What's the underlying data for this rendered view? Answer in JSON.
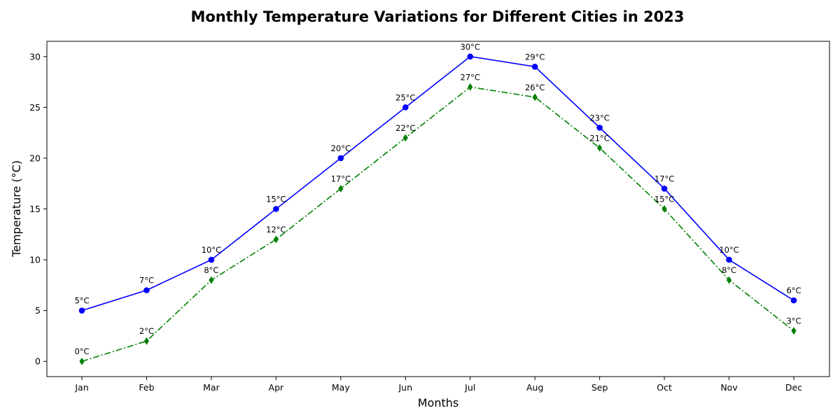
{
  "chart_data": {
    "type": "line",
    "title": "Monthly Temperature Variations for Different Cities in 2023",
    "xlabel": "Months",
    "ylabel": "Temperature (°C)",
    "categories": [
      "Jan",
      "Feb",
      "Mar",
      "Apr",
      "May",
      "Jun",
      "Jul",
      "Aug",
      "Sep",
      "Oct",
      "Nov",
      "Dec"
    ],
    "ylim": [
      -1.5,
      31.5
    ],
    "yticks": [
      0,
      5,
      10,
      15,
      20,
      25,
      30
    ],
    "grid": false,
    "label_suffix": "°C",
    "series": [
      {
        "values": [
          5,
          7,
          10,
          15,
          20,
          25,
          30,
          29,
          23,
          17,
          10,
          6
        ],
        "color": "#0000ff",
        "line_style": "solid",
        "marker": "circle"
      },
      {
        "values": [
          0,
          2,
          8,
          12,
          17,
          22,
          27,
          26,
          21,
          15,
          8,
          3
        ],
        "color": "#008000",
        "line_style": "dash-dot",
        "marker": "diamond"
      }
    ]
  }
}
